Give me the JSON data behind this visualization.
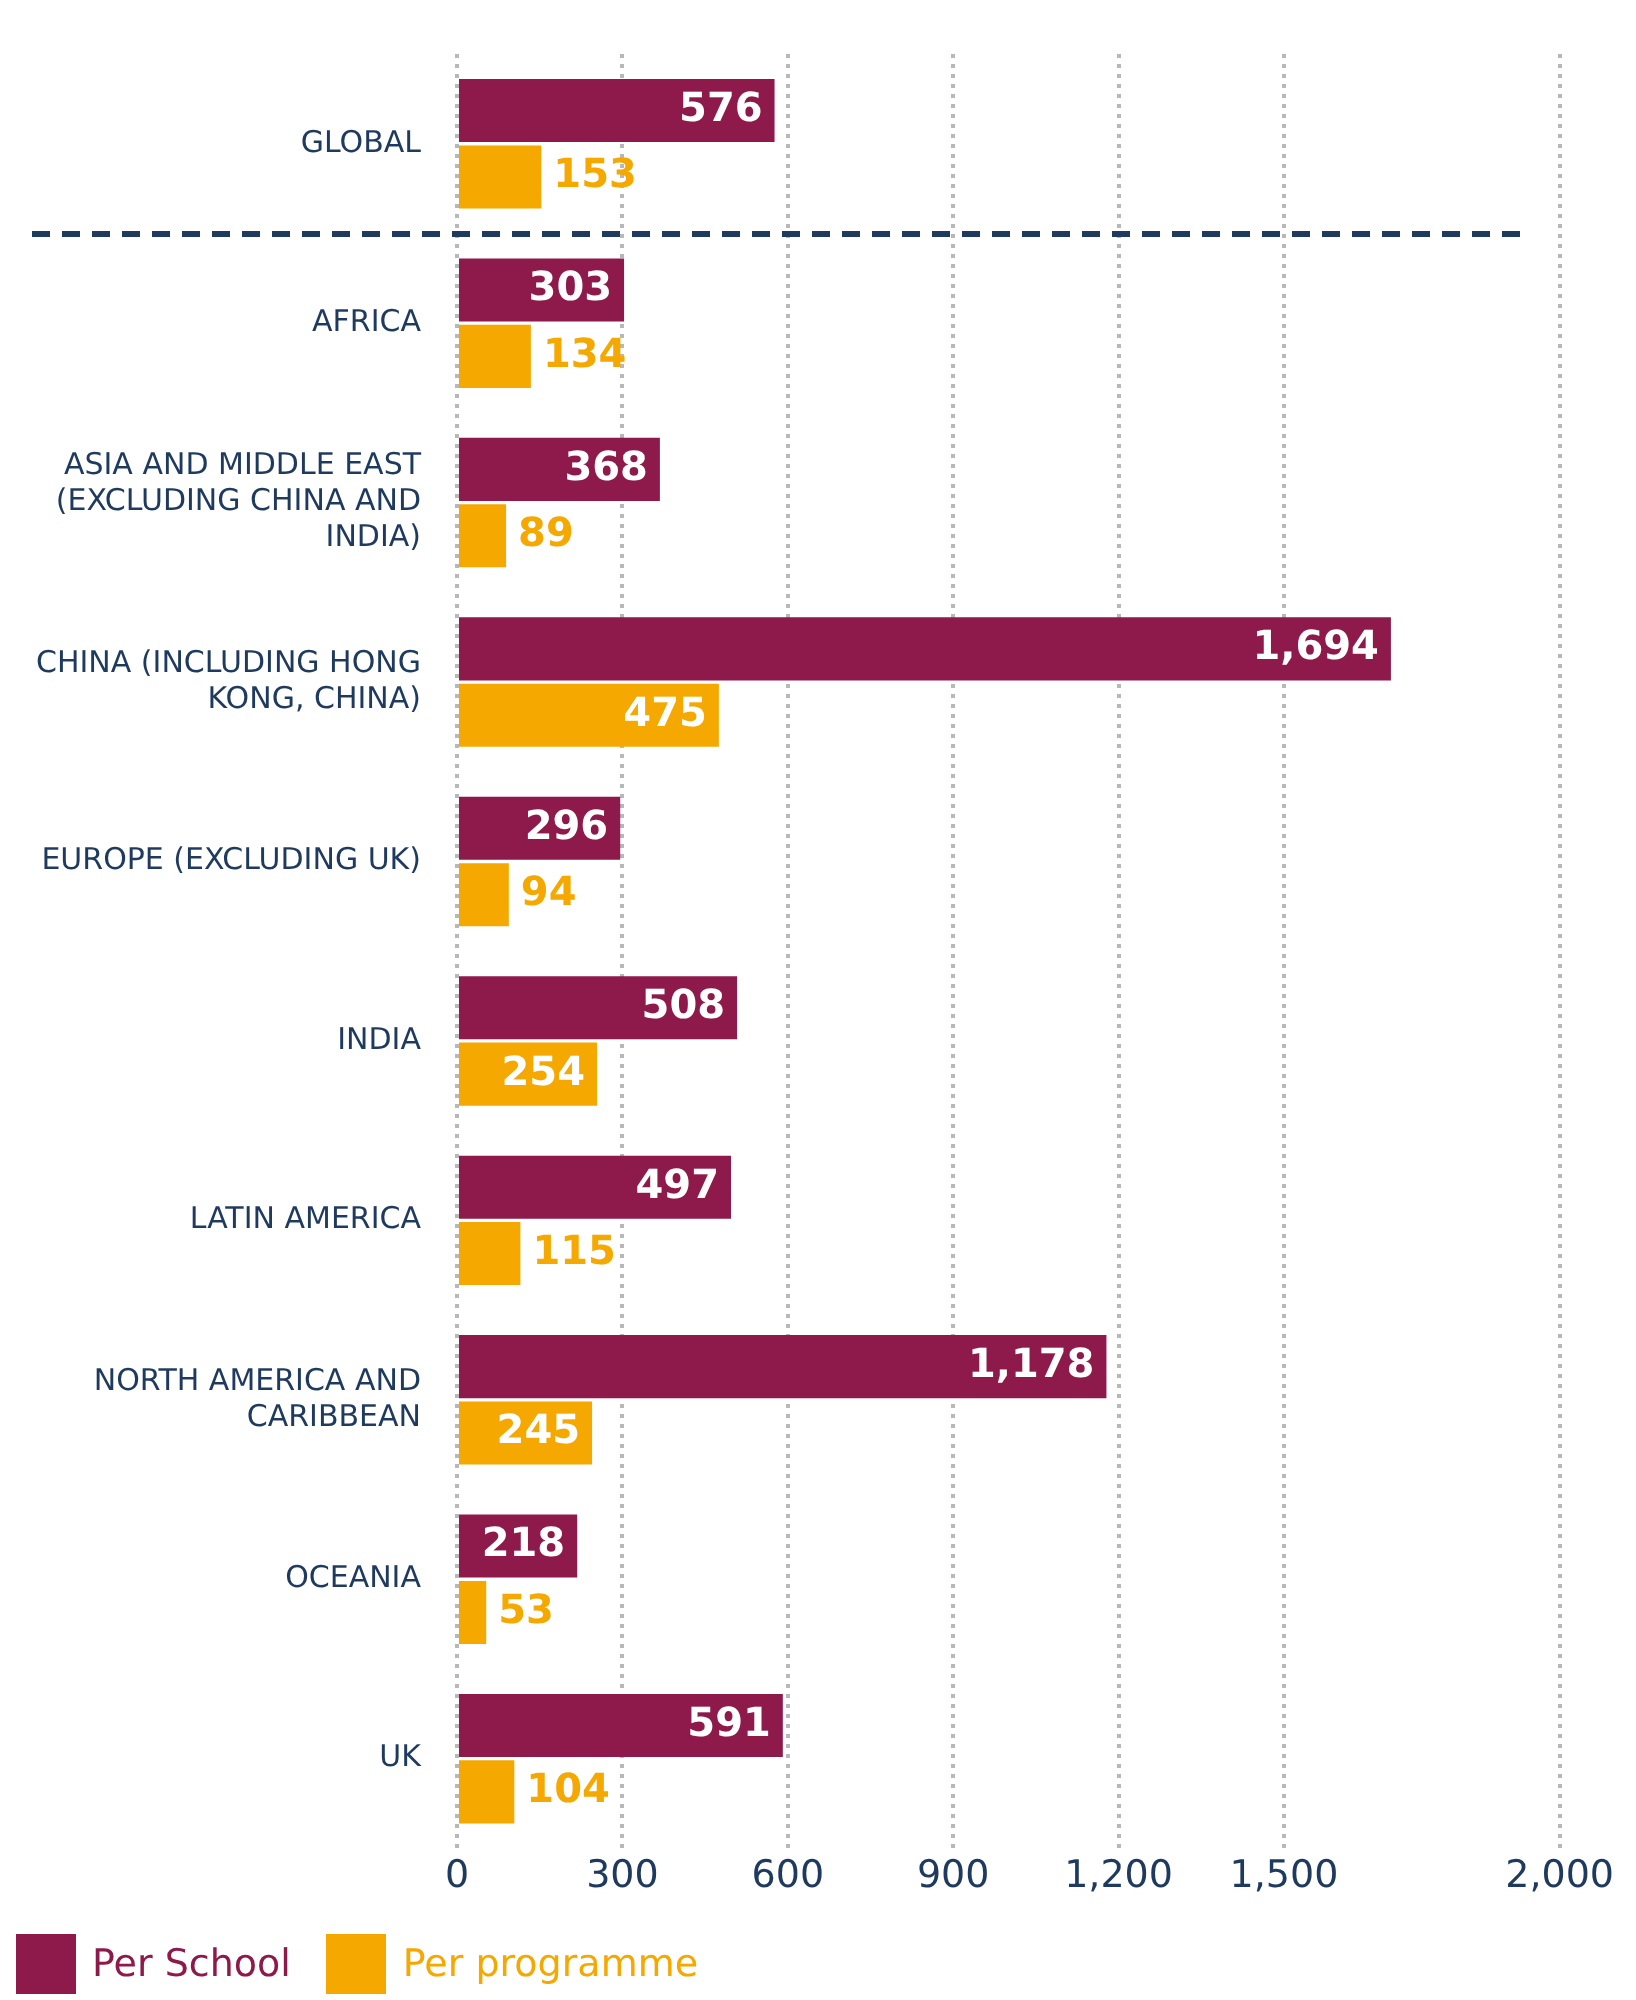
{
  "chart_data": {
    "type": "bar",
    "orientation": "horizontal",
    "categories": [
      "GLOBAL",
      "AFRICA",
      "ASIA AND MIDDLE EAST (EXCLUDING CHINA AND INDIA)",
      "CHINA (INCLUDING HONG KONG, CHINA)",
      "EUROPE (EXCLUDING UK)",
      "INDIA",
      "LATIN AMERICA",
      "NORTH AMERICA AND CARIBBEAN",
      "OCEANIA",
      "UK"
    ],
    "series": [
      {
        "name": "Per School",
        "color": "#8e1a4b",
        "values": [
          576,
          303,
          368,
          1694,
          296,
          508,
          497,
          1178,
          218,
          591
        ],
        "value_labels": [
          "576",
          "303",
          "368",
          "1,694",
          "296",
          "508",
          "497",
          "1,178",
          "218",
          "591"
        ]
      },
      {
        "name": "Per programme",
        "color": "#f5a800",
        "values": [
          153,
          134,
          89,
          475,
          94,
          254,
          115,
          245,
          53,
          104
        ],
        "value_labels": [
          "153",
          "134",
          "89",
          "475",
          "94",
          "254",
          "115",
          "245",
          "53",
          "104"
        ]
      }
    ],
    "xlim": [
      0,
      2000
    ],
    "xticks": [
      0,
      {
        "value": 300,
        "label": "300"
      },
      {
        "value": 600,
        "label": "600"
      },
      {
        "value": 900,
        "label": "900"
      },
      {
        "value": 1200,
        "label": "1,200"
      },
      {
        "value": 1500,
        "label": "1,500"
      },
      {
        "value": 2000,
        "label": "2,000"
      }
    ],
    "grid": "x",
    "legend": "bottom left"
  }
}
